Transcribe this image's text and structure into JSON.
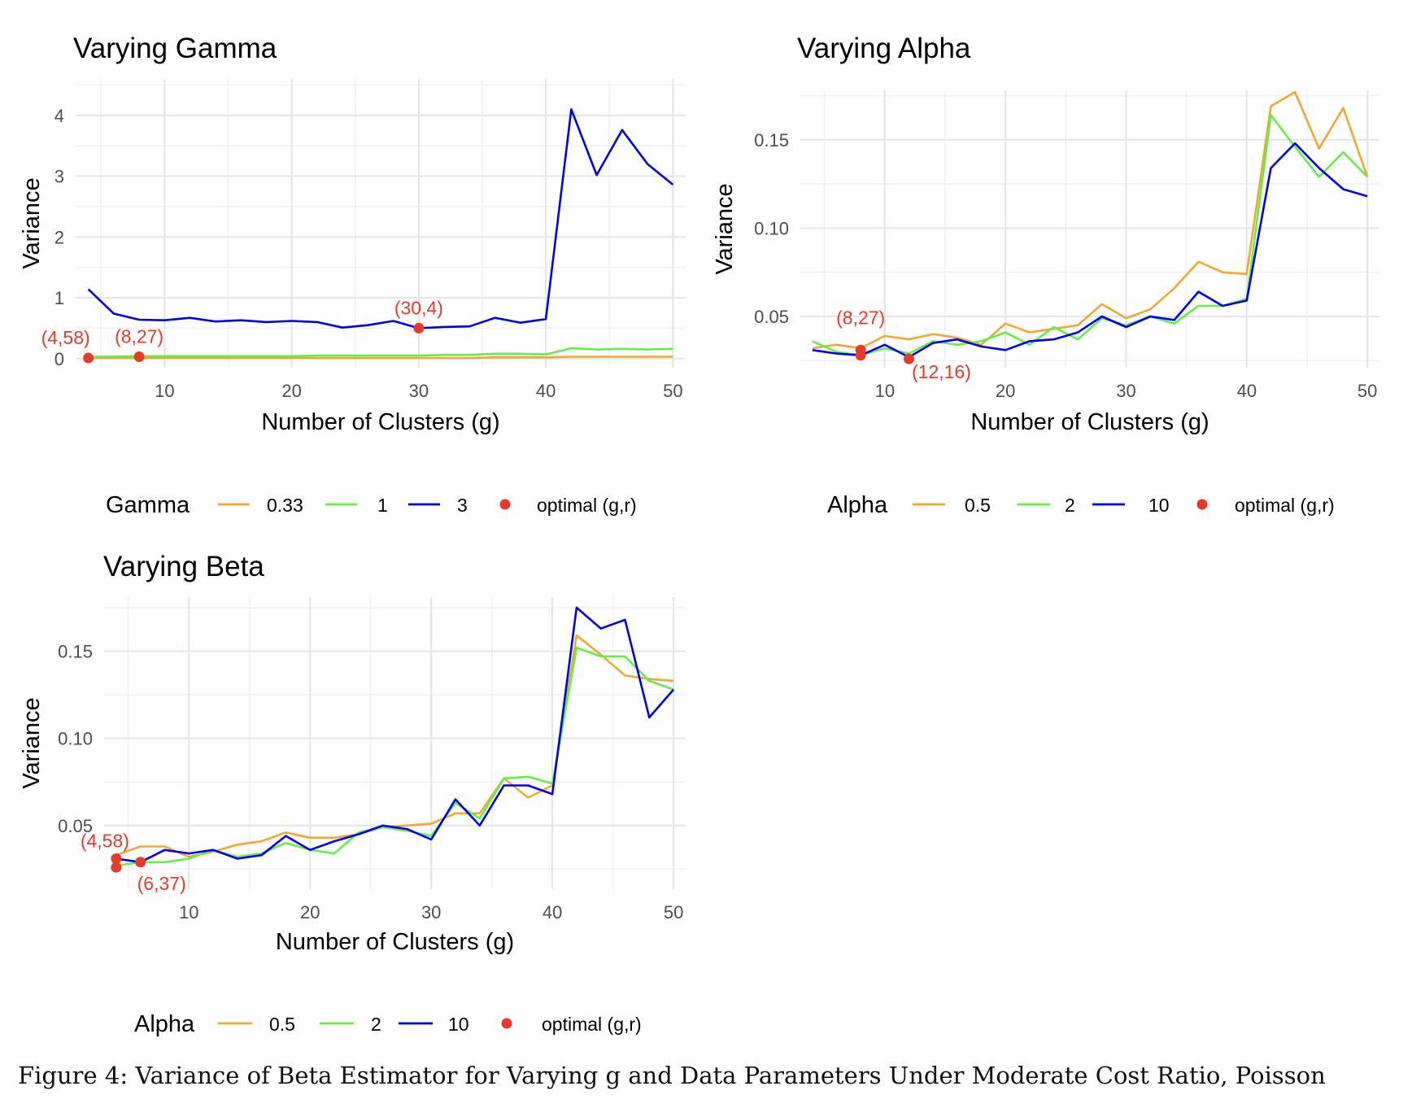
{
  "figure_caption": "Figure 4: Variance of Beta Estimator for Varying g and Data Parameters Under Moderate Cost Ratio, Poisson",
  "chart_data": [
    {
      "type": "line",
      "title": "Varying Gamma",
      "xlabel": "Number of Clusters (g)",
      "ylabel": "Variance",
      "xlim": [
        3,
        51
      ],
      "ylim": [
        -0.15,
        4.6
      ],
      "xticks": [
        10,
        20,
        30,
        40,
        50
      ],
      "yticks": [
        0,
        1,
        2,
        3,
        4
      ],
      "ytick_labels": [
        "0",
        "1",
        "2",
        "3",
        "4"
      ],
      "grid": true,
      "legend": {
        "title": "Gamma",
        "position": "bottom",
        "point_label": "optimal (g,r)"
      },
      "x": [
        4,
        6,
        8,
        10,
        12,
        14,
        16,
        18,
        20,
        22,
        24,
        26,
        28,
        30,
        32,
        34,
        36,
        38,
        40,
        42,
        44,
        46,
        48,
        50
      ],
      "series": [
        {
          "name": "0.33",
          "color": "#F0A830",
          "values": [
            0.01,
            0.01,
            0.01,
            0.01,
            0.01,
            0.01,
            0.01,
            0.01,
            0.01,
            0.01,
            0.01,
            0.01,
            0.01,
            0.01,
            0.01,
            0.01,
            0.02,
            0.02,
            0.02,
            0.03,
            0.03,
            0.03,
            0.03,
            0.03
          ]
        },
        {
          "name": "1",
          "color": "#66EE44",
          "values": [
            0.03,
            0.03,
            0.04,
            0.04,
            0.04,
            0.04,
            0.04,
            0.04,
            0.04,
            0.05,
            0.05,
            0.05,
            0.05,
            0.05,
            0.06,
            0.06,
            0.08,
            0.08,
            0.07,
            0.17,
            0.15,
            0.16,
            0.15,
            0.16
          ]
        },
        {
          "name": "3",
          "color": "#0000EE",
          "values": [
            1.14,
            0.74,
            0.64,
            0.63,
            0.67,
            0.61,
            0.63,
            0.6,
            0.62,
            0.6,
            0.51,
            0.55,
            0.62,
            0.5,
            0.52,
            0.53,
            0.67,
            0.59,
            0.65,
            4.1,
            3.02,
            3.76,
            3.2,
            2.86
          ]
        }
      ],
      "optimal_points": [
        {
          "x": 4,
          "y": 0.01,
          "label": "(4,58)"
        },
        {
          "x": 8,
          "y": 0.03,
          "label": "(8,27)"
        },
        {
          "x": 30,
          "y": 0.5,
          "label": "(30,4)"
        }
      ]
    },
    {
      "type": "line",
      "title": "Varying Alpha",
      "xlabel": "Number of Clusters (g)",
      "ylabel": "Variance",
      "xlim": [
        3,
        51
      ],
      "ylim": [
        0.021,
        0.178
      ],
      "xticks": [
        10,
        20,
        30,
        40,
        50
      ],
      "yticks": [
        0.05,
        0.1,
        0.15
      ],
      "ytick_labels": [
        "0.05",
        "0.10",
        "0.15"
      ],
      "grid": true,
      "legend": {
        "title": "Alpha",
        "position": "bottom",
        "point_label": "optimal (g,r)"
      },
      "x": [
        4,
        6,
        8,
        10,
        12,
        14,
        16,
        18,
        20,
        22,
        24,
        26,
        28,
        30,
        32,
        34,
        36,
        38,
        40,
        42,
        44,
        46,
        48,
        50
      ],
      "series": [
        {
          "name": "0.5",
          "color": "#F0A830",
          "values": [
            0.032,
            0.034,
            0.032,
            0.039,
            0.037,
            0.04,
            0.038,
            0.034,
            0.046,
            0.041,
            0.043,
            0.045,
            0.057,
            0.049,
            0.054,
            0.066,
            0.081,
            0.075,
            0.074,
            0.169,
            0.177,
            0.145,
            0.168,
            0.129
          ]
        },
        {
          "name": "2",
          "color": "#66EE44",
          "values": [
            0.036,
            0.03,
            0.028,
            0.032,
            0.029,
            0.036,
            0.034,
            0.036,
            0.041,
            0.034,
            0.044,
            0.037,
            0.049,
            0.045,
            0.05,
            0.046,
            0.056,
            0.056,
            0.06,
            0.164,
            0.146,
            0.129,
            0.143,
            0.129
          ]
        },
        {
          "name": "10",
          "color": "#0000EE",
          "values": [
            0.031,
            0.029,
            0.028,
            0.034,
            0.027,
            0.035,
            0.037,
            0.033,
            0.031,
            0.036,
            0.037,
            0.041,
            0.05,
            0.044,
            0.05,
            0.048,
            0.064,
            0.056,
            0.059,
            0.134,
            0.148,
            0.134,
            0.122,
            0.118
          ]
        }
      ],
      "optimal_points": [
        {
          "x": 8,
          "y": 0.031,
          "label": "(8,27)"
        },
        {
          "x": 8,
          "y": 0.028,
          "label": ""
        },
        {
          "x": 12,
          "y": 0.026,
          "label": "(12,16)"
        }
      ]
    },
    {
      "type": "line",
      "title": "Varying Beta",
      "xlabel": "Number of Clusters (g)",
      "ylabel": "Variance",
      "xlim": [
        3,
        51
      ],
      "ylim": [
        0.0135,
        0.181
      ],
      "xticks": [
        10,
        20,
        30,
        40,
        50
      ],
      "yticks": [
        0.05,
        0.1,
        0.15
      ],
      "ytick_labels": [
        "0.05",
        "0.10",
        "0.15"
      ],
      "grid": true,
      "legend": {
        "title": "Alpha",
        "position": "bottom",
        "point_label": "optimal (g,r)"
      },
      "x": [
        4,
        6,
        8,
        10,
        12,
        14,
        16,
        18,
        20,
        22,
        24,
        26,
        28,
        30,
        32,
        34,
        36,
        38,
        40,
        42,
        44,
        46,
        48,
        50
      ],
      "series": [
        {
          "name": "0.5",
          "color": "#F0A830",
          "values": [
            0.033,
            0.038,
            0.038,
            0.032,
            0.035,
            0.039,
            0.041,
            0.046,
            0.043,
            0.043,
            0.045,
            0.049,
            0.05,
            0.051,
            0.057,
            0.057,
            0.077,
            0.066,
            0.073,
            0.159,
            0.148,
            0.136,
            0.134,
            0.133
          ]
        },
        {
          "name": "2",
          "color": "#66EE44",
          "values": [
            0.027,
            0.029,
            0.029,
            0.031,
            0.036,
            0.032,
            0.034,
            0.04,
            0.036,
            0.034,
            0.046,
            0.049,
            0.047,
            0.044,
            0.063,
            0.054,
            0.077,
            0.078,
            0.074,
            0.152,
            0.147,
            0.147,
            0.133,
            0.128
          ]
        },
        {
          "name": "10",
          "color": "#0000EE",
          "values": [
            0.031,
            0.029,
            0.036,
            0.034,
            0.036,
            0.031,
            0.033,
            0.044,
            0.036,
            0.041,
            0.045,
            0.05,
            0.048,
            0.042,
            0.065,
            0.05,
            0.073,
            0.073,
            0.068,
            0.175,
            0.163,
            0.168,
            0.112,
            0.128
          ]
        }
      ],
      "optimal_points": [
        {
          "x": 4,
          "y": 0.031,
          "label": "(4,58)"
        },
        {
          "x": 4,
          "y": 0.026,
          "label": ""
        },
        {
          "x": 6,
          "y": 0.029,
          "label": "(6,37)"
        }
      ]
    }
  ]
}
